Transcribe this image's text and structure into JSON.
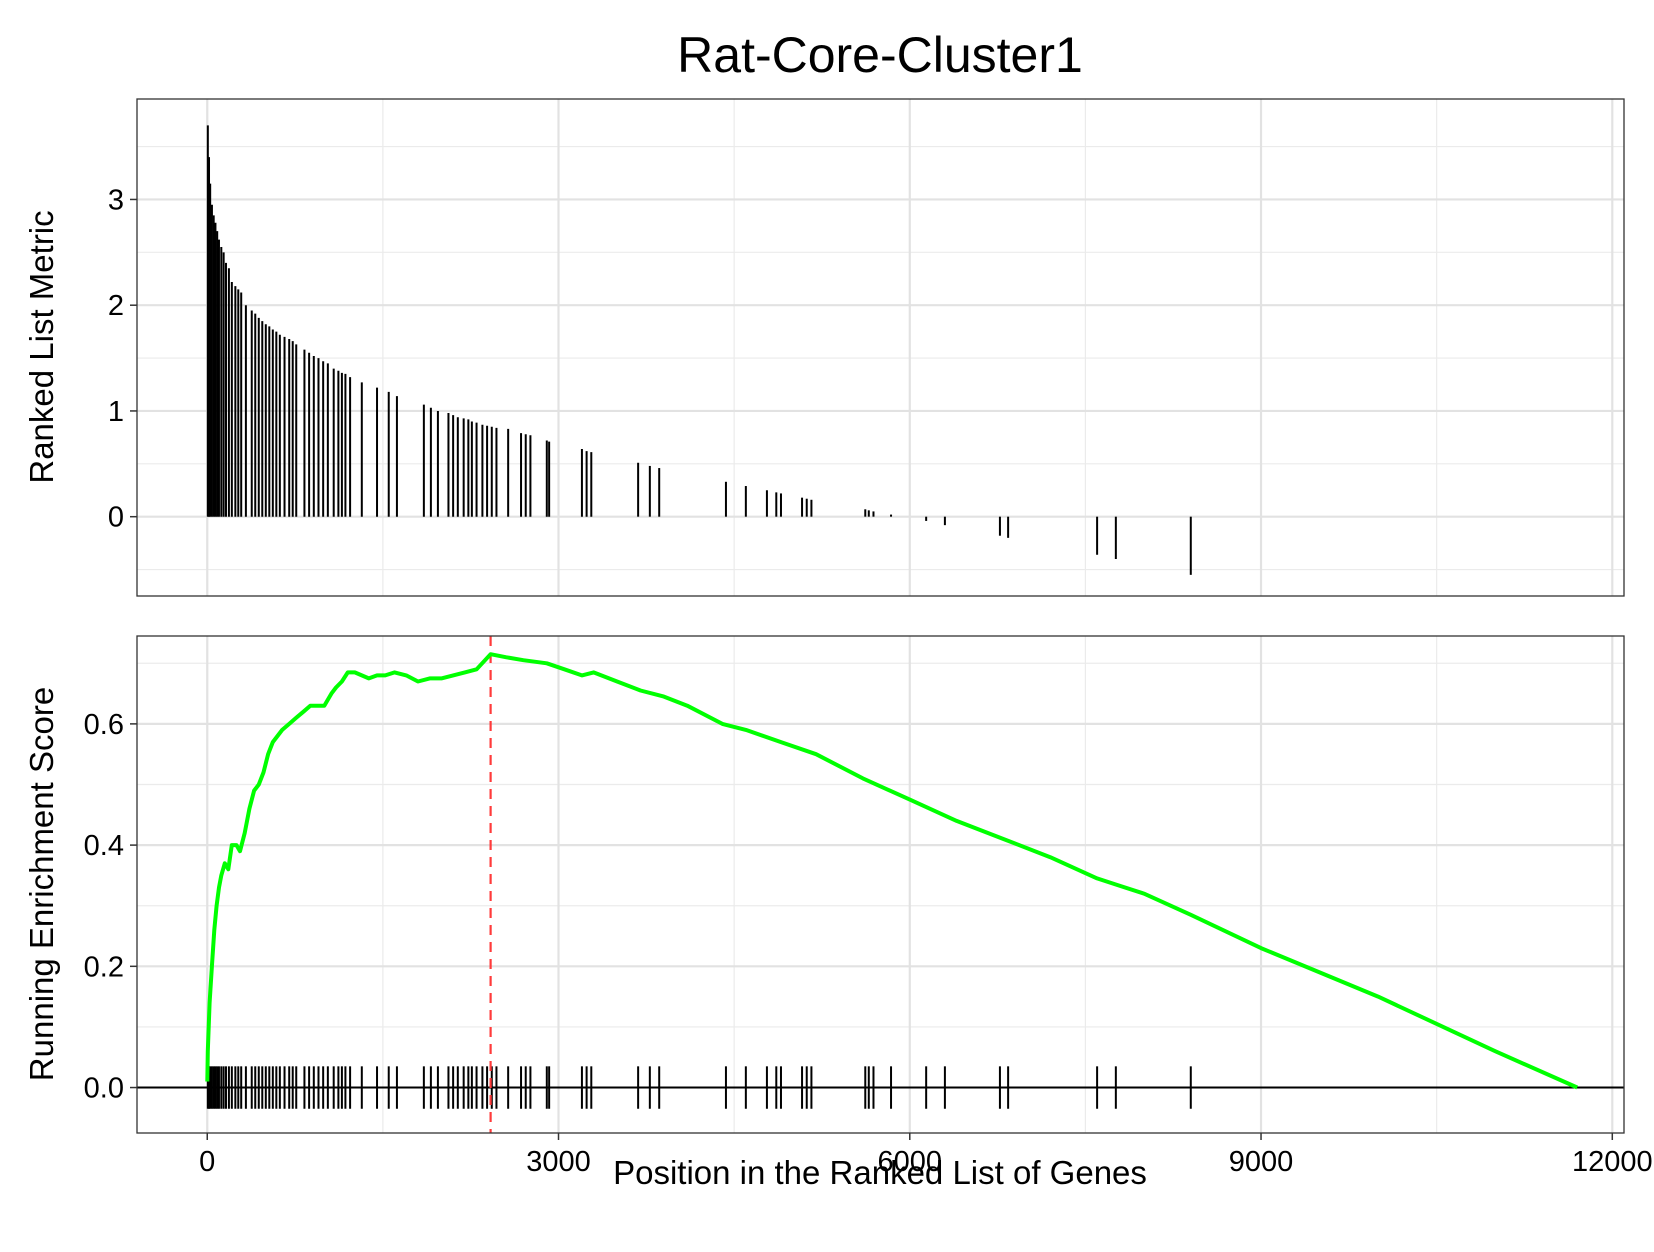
{
  "chart_data": [
    {
      "type": "bar",
      "title": "Rat-Core-Cluster1",
      "xlabel": "",
      "ylabel": "Ranked List Metric",
      "xlim": [
        -600,
        12100
      ],
      "ylim": [
        -0.75,
        3.95
      ],
      "yticks": [
        0,
        1,
        2,
        3
      ],
      "ytick_labels": [
        "0",
        "1",
        "2",
        "3"
      ],
      "grid": true,
      "bar_color": "#000000",
      "positions": [
        5,
        15,
        25,
        40,
        55,
        70,
        85,
        100,
        120,
        140,
        160,
        185,
        210,
        240,
        265,
        290,
        330,
        380,
        410,
        440,
        470,
        500,
        530,
        560,
        590,
        620,
        660,
        700,
        730,
        760,
        830,
        870,
        910,
        950,
        990,
        1030,
        1080,
        1120,
        1150,
        1180,
        1220,
        1320,
        1450,
        1550,
        1620,
        1850,
        1910,
        1970,
        2060,
        2100,
        2140,
        2190,
        2230,
        2260,
        2300,
        2350,
        2390,
        2430,
        2470,
        2570,
        2680,
        2720,
        2760,
        2900,
        2920,
        3200,
        3240,
        3280,
        3680,
        3780,
        3860,
        4430,
        4600,
        4780,
        4860,
        4900,
        5080,
        5120,
        5160,
        5620,
        5650,
        5690,
        5840,
        6140,
        6300,
        6770,
        6840,
        7600,
        7760,
        8400
      ],
      "values": [
        3.7,
        3.4,
        3.15,
        2.95,
        2.85,
        2.78,
        2.7,
        2.62,
        2.55,
        2.5,
        2.4,
        2.35,
        2.22,
        2.18,
        2.15,
        2.12,
        2.0,
        1.95,
        1.92,
        1.88,
        1.85,
        1.82,
        1.8,
        1.77,
        1.75,
        1.72,
        1.7,
        1.68,
        1.66,
        1.63,
        1.58,
        1.55,
        1.52,
        1.5,
        1.47,
        1.45,
        1.4,
        1.38,
        1.36,
        1.35,
        1.32,
        1.27,
        1.22,
        1.18,
        1.14,
        1.06,
        1.03,
        1.0,
        0.98,
        0.96,
        0.94,
        0.93,
        0.92,
        0.9,
        0.89,
        0.87,
        0.86,
        0.85,
        0.84,
        0.83,
        0.79,
        0.78,
        0.77,
        0.72,
        0.71,
        0.64,
        0.62,
        0.61,
        0.51,
        0.48,
        0.46,
        0.33,
        0.29,
        0.25,
        0.23,
        0.22,
        0.18,
        0.17,
        0.16,
        0.07,
        0.06,
        0.05,
        0.02,
        -0.04,
        -0.08,
        -0.18,
        -0.2,
        -0.36,
        -0.4,
        -0.55
      ]
    },
    {
      "type": "line",
      "xlabel": "Position in the Ranked List of Genes",
      "ylabel": "Running Enrichment Score",
      "xlim": [
        -600,
        12100
      ],
      "ylim": [
        -0.075,
        0.745
      ],
      "xticks": [
        0,
        3000,
        6000,
        9000,
        12000
      ],
      "xtick_labels": [
        "0",
        "3000",
        "6000",
        "9000",
        "12000"
      ],
      "yticks": [
        0.0,
        0.2,
        0.4,
        0.6
      ],
      "ytick_labels": [
        "0.0",
        "0.2",
        "0.4",
        "0.6"
      ],
      "grid": true,
      "line_color": "#00ff00",
      "vline": {
        "x": 2420,
        "color": "#ff3b3b",
        "style": "dashed"
      },
      "hline": {
        "y": 0,
        "color": "#000000"
      },
      "hits_color": "#000000",
      "x": [
        0,
        5,
        20,
        40,
        60,
        80,
        100,
        120,
        150,
        180,
        210,
        250,
        280,
        320,
        360,
        400,
        440,
        480,
        520,
        560,
        600,
        640,
        700,
        760,
        820,
        880,
        940,
        1000,
        1060,
        1100,
        1150,
        1200,
        1260,
        1320,
        1380,
        1450,
        1520,
        1600,
        1700,
        1800,
        1900,
        2000,
        2100,
        2200,
        2300,
        2420,
        2550,
        2700,
        2900,
        3050,
        3200,
        3300,
        3500,
        3700,
        3900,
        4100,
        4400,
        4600,
        4900,
        5200,
        5600,
        6000,
        6400,
        6800,
        7200,
        7600,
        7760,
        8000,
        8400,
        9000,
        10000,
        11000,
        11700
      ],
      "y": [
        0.01,
        0.06,
        0.14,
        0.2,
        0.26,
        0.3,
        0.33,
        0.35,
        0.37,
        0.36,
        0.4,
        0.4,
        0.39,
        0.42,
        0.46,
        0.49,
        0.5,
        0.52,
        0.55,
        0.57,
        0.58,
        0.59,
        0.6,
        0.61,
        0.62,
        0.63,
        0.63,
        0.63,
        0.65,
        0.66,
        0.67,
        0.685,
        0.685,
        0.68,
        0.675,
        0.68,
        0.68,
        0.685,
        0.68,
        0.67,
        0.675,
        0.675,
        0.68,
        0.685,
        0.69,
        0.715,
        0.71,
        0.705,
        0.7,
        0.69,
        0.68,
        0.685,
        0.67,
        0.655,
        0.645,
        0.63,
        0.6,
        0.59,
        0.57,
        0.55,
        0.51,
        0.475,
        0.44,
        0.41,
        0.38,
        0.345,
        0.335,
        0.32,
        0.285,
        0.23,
        0.15,
        0.06,
        0.0
      ]
    }
  ]
}
